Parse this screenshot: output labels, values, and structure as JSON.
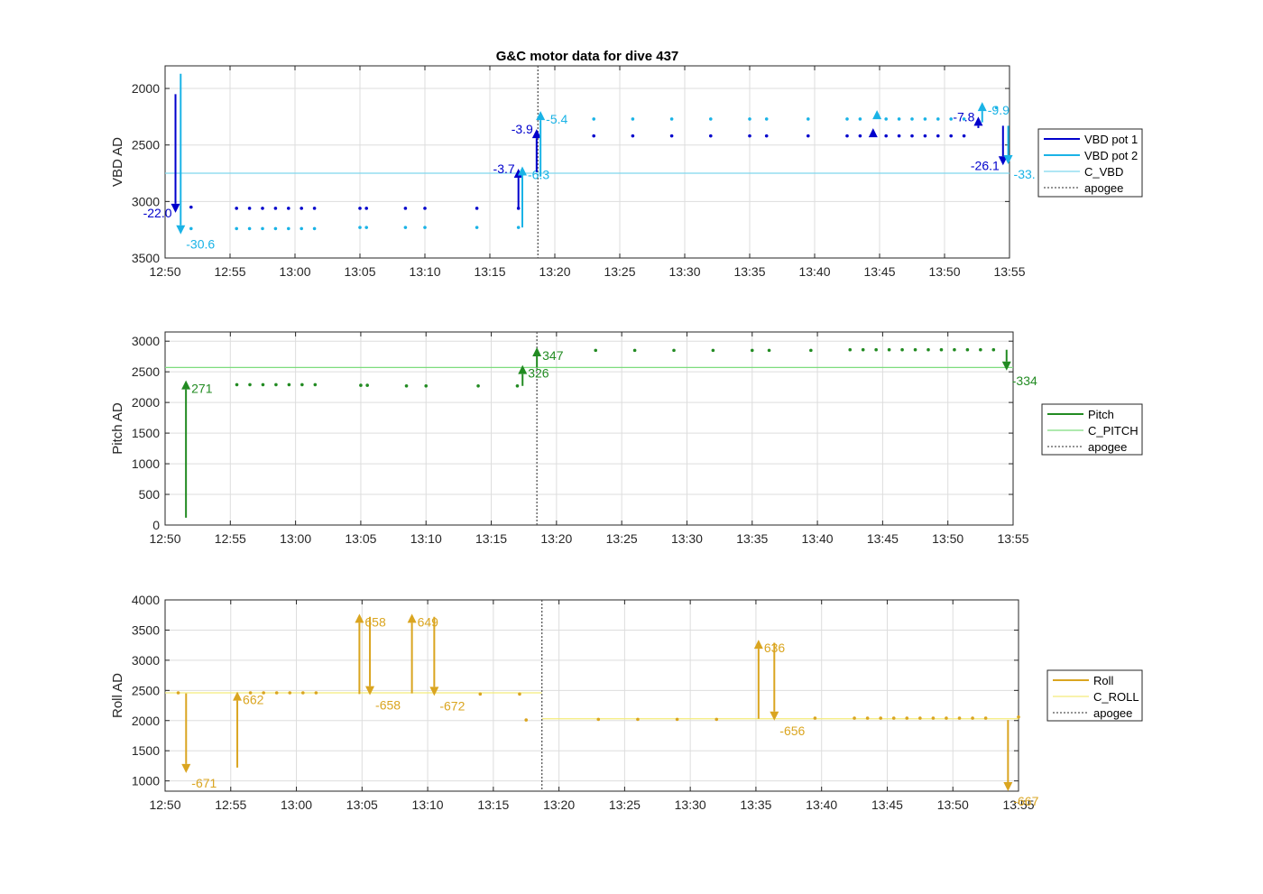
{
  "chart_data": [
    {
      "type": "line",
      "title": "G&C motor data for dive 437",
      "xlabel": "",
      "ylabel": "VBD AD",
      "x_unit": "time (HH:MM)",
      "x_ticks": [
        "12:50",
        "12:55",
        "13:00",
        "13:05",
        "13:10",
        "13:15",
        "13:20",
        "13:25",
        "13:30",
        "13:35",
        "13:40",
        "13:45",
        "13:50",
        "13:55"
      ],
      "xlim": [
        "12:50",
        "13:55"
      ],
      "ylim": [
        3500,
        1800
      ],
      "y_reversed": true,
      "y_ticks": [
        2000,
        2500,
        3000,
        3500
      ],
      "grid": true,
      "legend_position": "right",
      "legend": [
        "VBD pot 1",
        "VBD pot 2",
        "C_VBD",
        "apogee"
      ],
      "colors": {
        "pot1": "#0000cc",
        "pot2": "#1ab3e6",
        "c_line": "#7fd8ee",
        "apogee": "#555555"
      },
      "c_value": 2750,
      "apogee": "13:18.7",
      "series": [
        {
          "name": "VBD pot 1",
          "x": [
            "12:52",
            "12:55.5",
            "12:56.5",
            "12:57.5",
            "12:58.5",
            "12:59.5",
            "13:00.5",
            "13:01.5",
            "13:05",
            "13:05.5",
            "13:08.5",
            "13:10",
            "13:14",
            "13:17.2",
            "13:23",
            "13:26",
            "13:29",
            "13:32",
            "13:35",
            "13:36.3",
            "13:39.5",
            "13:42.5",
            "13:43.5",
            "13:45.5",
            "13:46.5",
            "13:47.5",
            "13:48.5",
            "13:49.5",
            "13:50.5",
            "13:51.5"
          ],
          "y": [
            3050,
            3060,
            3060,
            3060,
            3060,
            3060,
            3060,
            3060,
            3060,
            3060,
            3060,
            3060,
            3060,
            3060,
            2420,
            2420,
            2420,
            2420,
            2420,
            2420,
            2420,
            2420,
            2420,
            2420,
            2420,
            2420,
            2420,
            2420,
            2420,
            2420
          ]
        },
        {
          "name": "VBD pot 2",
          "x": [
            "12:52",
            "12:55.5",
            "12:56.5",
            "12:57.5",
            "12:58.5",
            "12:59.5",
            "13:00.5",
            "13:01.5",
            "13:05",
            "13:05.5",
            "13:08.5",
            "13:10",
            "13:14",
            "13:17.2",
            "13:23",
            "13:26",
            "13:29",
            "13:32",
            "13:35",
            "13:36.3",
            "13:39.5",
            "13:42.5",
            "13:43.5",
            "13:45.5",
            "13:46.5",
            "13:47.5",
            "13:48.5",
            "13:49.5",
            "13:50.5",
            "13:51.5",
            "13:54"
          ],
          "y": [
            3240,
            3240,
            3240,
            3240,
            3240,
            3240,
            3240,
            3240,
            3230,
            3230,
            3230,
            3230,
            3230,
            3230,
            2270,
            2270,
            2270,
            2270,
            2270,
            2270,
            2270,
            2270,
            2270,
            2270,
            2270,
            2270,
            2270,
            2270,
            2270,
            2270,
            2170
          ]
        }
      ],
      "arrows": [
        {
          "series": "pot1",
          "x": "12:50.8",
          "from": 2050,
          "to": 3100,
          "label": "-22.0"
        },
        {
          "series": "pot2",
          "x": "12:51.2",
          "from": 1870,
          "to": 3290,
          "label": "-30.6"
        },
        {
          "series": "pot1",
          "x": "13:17.2",
          "from": 3050,
          "to": 2710,
          "label": "-3.7"
        },
        {
          "series": "pot2",
          "x": "13:17.5",
          "from": 3230,
          "to": 2690,
          "label": "-6.3"
        },
        {
          "series": "pot1",
          "x": "13:18.6",
          "from": 2740,
          "to": 2360,
          "label": "-3.9"
        },
        {
          "series": "pot2",
          "x": "13:18.9",
          "from": 2780,
          "to": 2200,
          "label": "-5.4"
        },
        {
          "series": "pot1",
          "x": "13:52.6",
          "from": 2350,
          "to": 2250,
          "label": "-7.8"
        },
        {
          "series": "pot2",
          "x": "13:52.9",
          "from": 2300,
          "to": 2120,
          "label": "-9.9"
        },
        {
          "series": "pot1",
          "x": "13:54.5",
          "from": 2330,
          "to": 2680,
          "label": "-26.1"
        },
        {
          "series": "pot2",
          "x": "13:54.9",
          "from": 2330,
          "to": 2670,
          "label": "-33."
        }
      ],
      "markers": [
        {
          "series": "pot1",
          "x": "13:44.5",
          "y": 2400
        },
        {
          "series": "pot2",
          "x": "13:44.8",
          "y": 2240
        }
      ]
    },
    {
      "type": "line",
      "title": "",
      "xlabel": "",
      "ylabel": "Pitch AD",
      "x_ticks": [
        "12:50",
        "12:55",
        "13:00",
        "13:05",
        "13:10",
        "13:15",
        "13:20",
        "13:25",
        "13:30",
        "13:35",
        "13:40",
        "13:45",
        "13:50",
        "13:55"
      ],
      "xlim": [
        "12:50",
        "13:55"
      ],
      "ylim": [
        0,
        3150
      ],
      "y_ticks": [
        0,
        500,
        1000,
        1500,
        2000,
        2500,
        3000
      ],
      "grid": true,
      "legend_position": "right",
      "legend": [
        "Pitch",
        "C_PITCH",
        "apogee"
      ],
      "colors": {
        "series": "#228b22",
        "c_line": "#7ddc7d",
        "apogee": "#555555"
      },
      "c_value": 2570,
      "apogee": "13:18.5",
      "series": [
        {
          "name": "Pitch",
          "x": [
            "12:55.5",
            "12:56.5",
            "12:57.5",
            "12:58.5",
            "12:59.5",
            "13:00.5",
            "13:01.5",
            "13:05",
            "13:05.5",
            "13:08.5",
            "13:10",
            "13:14",
            "13:17",
            "13:23",
            "13:26",
            "13:29",
            "13:32",
            "13:35",
            "13:36.3",
            "13:39.5",
            "13:42.5",
            "13:43.5",
            "13:44.5",
            "13:45.5",
            "13:46.5",
            "13:47.5",
            "13:48.5",
            "13:49.5",
            "13:50.5",
            "13:51.5",
            "13:52.5",
            "13:53.5"
          ],
          "y": [
            2290,
            2290,
            2290,
            2290,
            2290,
            2290,
            2290,
            2280,
            2280,
            2270,
            2270,
            2270,
            2270,
            2850,
            2850,
            2850,
            2850,
            2850,
            2850,
            2850,
            2860,
            2860,
            2860,
            2860,
            2860,
            2860,
            2860,
            2860,
            2860,
            2860,
            2860,
            2860
          ]
        }
      ],
      "arrows": [
        {
          "x": "12:51.6",
          "from": 120,
          "to": 2360,
          "label": "271"
        },
        {
          "x": "13:17.4",
          "from": 2270,
          "to": 2610,
          "label": "326"
        },
        {
          "x": "13:18.5",
          "from": 2570,
          "to": 2900,
          "label": "347"
        },
        {
          "x": "13:54.5",
          "from": 2860,
          "to": 2520,
          "label": "-334"
        }
      ]
    },
    {
      "type": "line",
      "title": "",
      "xlabel": "",
      "ylabel": "Roll AD",
      "x_ticks": [
        "12:50",
        "12:55",
        "13:00",
        "13:05",
        "13:10",
        "13:15",
        "13:20",
        "13:25",
        "13:30",
        "13:35",
        "13:40",
        "13:45",
        "13:50",
        "13:55"
      ],
      "xlim": [
        "12:50",
        "13:55"
      ],
      "ylim": [
        830,
        4000
      ],
      "y_ticks": [
        1000,
        1500,
        2000,
        2500,
        3000,
        3500,
        4000
      ],
      "grid": true,
      "legend_position": "right",
      "legend": [
        "Roll",
        "C_ROLL",
        "apogee"
      ],
      "colors": {
        "series": "#daa520",
        "c_line": "#f4ec7a",
        "apogee": "#555555"
      },
      "c_high": 2460,
      "c_low": 2030,
      "c_step_at": "13:18.7",
      "apogee": "13:18.7",
      "series": [
        {
          "name": "Roll",
          "x": [
            "12:51",
            "12:56.5",
            "12:57.5",
            "12:58.5",
            "12:59.5",
            "13:00.5",
            "13:01.5",
            "13:14",
            "13:17",
            "13:17.5",
            "13:23",
            "13:26",
            "13:29",
            "13:32",
            "13:39.5",
            "13:42.5",
            "13:43.5",
            "13:44.5",
            "13:45.5",
            "13:46.5",
            "13:47.5",
            "13:48.5",
            "13:49.5",
            "13:50.5",
            "13:51.5",
            "13:52.5",
            "13:55"
          ],
          "y": [
            2460,
            2460,
            2460,
            2460,
            2460,
            2460,
            2460,
            2440,
            2440,
            2010,
            2020,
            2020,
            2020,
            2020,
            2040,
            2040,
            2040,
            2040,
            2040,
            2040,
            2040,
            2040,
            2040,
            2040,
            2040,
            2040,
            2060
          ]
        }
      ],
      "arrows": [
        {
          "x": "12:51.6",
          "from": 2450,
          "to": 1130,
          "label": "-671"
        },
        {
          "x": "12:55.5",
          "from": 1220,
          "to": 2480,
          "label": "662"
        },
        {
          "x": "13:04.8",
          "from": 2440,
          "to": 3770,
          "label": "658"
        },
        {
          "x": "13:05.6",
          "from": 3720,
          "to": 2420,
          "label": "-658"
        },
        {
          "x": "13:08.8",
          "from": 2450,
          "to": 3770,
          "label": "649"
        },
        {
          "x": "13:10.5",
          "from": 3720,
          "to": 2410,
          "label": "-672"
        },
        {
          "x": "13:35.2",
          "from": 2030,
          "to": 3340,
          "label": "636"
        },
        {
          "x": "13:36.4",
          "from": 3290,
          "to": 2000,
          "label": "-656"
        },
        {
          "x": "13:54.2",
          "from": 2010,
          "to": 830,
          "label": "-667"
        }
      ]
    }
  ]
}
